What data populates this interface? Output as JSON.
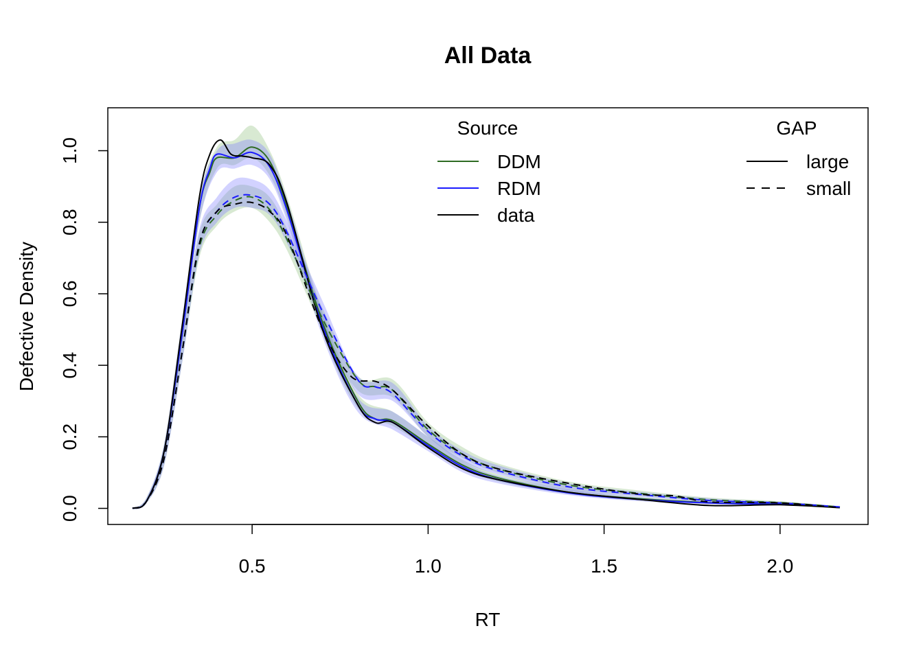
{
  "chart_data": {
    "type": "line",
    "title": "All Data",
    "xlabel": "RT",
    "ylabel": "Defective Density",
    "xlim": [
      0.09,
      2.25
    ],
    "ylim": [
      -0.045,
      1.12
    ],
    "xticks": [
      0.5,
      1.0,
      1.5,
      2.0
    ],
    "xtick_labels": [
      "0.5",
      "1.0",
      "1.5",
      "2.0"
    ],
    "yticks": [
      0.0,
      0.2,
      0.4,
      0.6,
      0.8,
      1.0
    ],
    "ytick_labels": [
      "0.0",
      "0.2",
      "0.4",
      "0.6",
      "0.8",
      "1.0"
    ],
    "grid": false,
    "legends": [
      {
        "title": "Source",
        "placement": "top-center",
        "entries": [
          {
            "label": "DDM",
            "color": "#2e6b22",
            "dash": "solid"
          },
          {
            "label": "RDM",
            "color": "#1a1aff",
            "dash": "solid"
          },
          {
            "label": "data",
            "color": "#000000",
            "dash": "solid"
          }
        ]
      },
      {
        "title": "GAP",
        "placement": "top-right",
        "entries": [
          {
            "label": "large",
            "color": "#000000",
            "dash": "solid"
          },
          {
            "label": "small",
            "color": "#000000",
            "dash": "dashed"
          }
        ]
      }
    ],
    "bands": [
      {
        "name": "DDM large",
        "color": "#8fbf7f",
        "opacity": 0.35,
        "x": [
          0.16,
          0.2,
          0.25,
          0.3,
          0.35,
          0.4,
          0.45,
          0.5,
          0.55,
          0.6,
          0.7,
          0.8,
          0.9,
          1.0,
          1.1,
          1.2,
          1.4,
          1.6,
          1.8,
          2.0,
          2.17
        ],
        "lower": [
          0.0,
          0.02,
          0.14,
          0.45,
          0.8,
          0.95,
          0.96,
          0.98,
          0.93,
          0.81,
          0.49,
          0.28,
          0.23,
          0.17,
          0.11,
          0.075,
          0.04,
          0.022,
          0.013,
          0.01,
          0.002
        ],
        "upper": [
          0.0,
          0.03,
          0.18,
          0.52,
          0.87,
          1.01,
          1.03,
          1.07,
          1.0,
          0.87,
          0.55,
          0.32,
          0.27,
          0.2,
          0.135,
          0.095,
          0.055,
          0.032,
          0.02,
          0.015,
          0.005
        ]
      },
      {
        "name": "RDM large",
        "color": "#7f7fff",
        "opacity": 0.35,
        "x": [
          0.16,
          0.2,
          0.25,
          0.3,
          0.35,
          0.4,
          0.45,
          0.5,
          0.55,
          0.6,
          0.7,
          0.8,
          0.9,
          1.0,
          1.1,
          1.2,
          1.4,
          1.6,
          1.8,
          2.0,
          2.17
        ],
        "lower": [
          0.0,
          0.02,
          0.14,
          0.45,
          0.8,
          0.94,
          0.95,
          0.96,
          0.92,
          0.8,
          0.48,
          0.27,
          0.22,
          0.16,
          0.1,
          0.07,
          0.037,
          0.02,
          0.012,
          0.009,
          0.002
        ],
        "upper": [
          0.0,
          0.03,
          0.18,
          0.52,
          0.87,
          1.0,
          1.02,
          1.03,
          0.99,
          0.86,
          0.54,
          0.31,
          0.27,
          0.2,
          0.13,
          0.09,
          0.052,
          0.03,
          0.019,
          0.014,
          0.005
        ]
      },
      {
        "name": "DDM small",
        "color": "#8fbf7f",
        "opacity": 0.35,
        "x": [
          0.16,
          0.2,
          0.25,
          0.3,
          0.35,
          0.4,
          0.45,
          0.5,
          0.55,
          0.6,
          0.7,
          0.8,
          0.9,
          1.0,
          1.1,
          1.2,
          1.4,
          1.6,
          1.8,
          2.0,
          2.17
        ],
        "lower": [
          0.0,
          0.015,
          0.12,
          0.4,
          0.7,
          0.79,
          0.83,
          0.84,
          0.8,
          0.72,
          0.5,
          0.33,
          0.31,
          0.2,
          0.14,
          0.1,
          0.055,
          0.035,
          0.02,
          0.012,
          0.002
        ],
        "upper": [
          0.0,
          0.025,
          0.16,
          0.47,
          0.77,
          0.85,
          0.9,
          0.9,
          0.87,
          0.78,
          0.56,
          0.37,
          0.36,
          0.24,
          0.17,
          0.125,
          0.075,
          0.05,
          0.03,
          0.02,
          0.006
        ]
      },
      {
        "name": "RDM small",
        "color": "#7f7fff",
        "opacity": 0.35,
        "x": [
          0.16,
          0.2,
          0.25,
          0.3,
          0.35,
          0.4,
          0.45,
          0.5,
          0.55,
          0.6,
          0.7,
          0.8,
          0.9,
          1.0,
          1.1,
          1.2,
          1.4,
          1.6,
          1.8,
          2.0,
          2.17
        ],
        "lower": [
          0.0,
          0.015,
          0.12,
          0.4,
          0.71,
          0.8,
          0.84,
          0.84,
          0.82,
          0.74,
          0.52,
          0.32,
          0.3,
          0.2,
          0.13,
          0.095,
          0.05,
          0.032,
          0.018,
          0.012,
          0.002
        ],
        "upper": [
          0.0,
          0.025,
          0.16,
          0.47,
          0.78,
          0.87,
          0.92,
          0.92,
          0.89,
          0.8,
          0.58,
          0.37,
          0.35,
          0.23,
          0.16,
          0.12,
          0.07,
          0.046,
          0.028,
          0.018,
          0.006
        ]
      }
    ],
    "series": [
      {
        "name": "DDM large",
        "color": "#2e6b22",
        "dash": "solid",
        "x": [
          0.16,
          0.2,
          0.25,
          0.3,
          0.35,
          0.38,
          0.4,
          0.45,
          0.5,
          0.55,
          0.6,
          0.7,
          0.8,
          0.85,
          0.9,
          1.0,
          1.1,
          1.2,
          1.4,
          1.6,
          1.8,
          2.0,
          2.17
        ],
        "y": [
          0.0,
          0.02,
          0.16,
          0.48,
          0.84,
          0.94,
          0.98,
          0.98,
          1.01,
          0.97,
          0.84,
          0.52,
          0.3,
          0.25,
          0.245,
          0.18,
          0.12,
          0.085,
          0.045,
          0.027,
          0.016,
          0.012,
          0.003
        ]
      },
      {
        "name": "RDM large",
        "color": "#1a1aff",
        "dash": "solid",
        "x": [
          0.16,
          0.2,
          0.25,
          0.3,
          0.35,
          0.38,
          0.4,
          0.45,
          0.5,
          0.55,
          0.6,
          0.7,
          0.8,
          0.85,
          0.9,
          1.0,
          1.1,
          1.2,
          1.4,
          1.6,
          1.8,
          2.0,
          2.17
        ],
        "y": [
          0.0,
          0.02,
          0.16,
          0.48,
          0.84,
          0.95,
          0.99,
          0.98,
          0.995,
          0.955,
          0.83,
          0.51,
          0.29,
          0.25,
          0.24,
          0.175,
          0.115,
          0.08,
          0.043,
          0.025,
          0.015,
          0.011,
          0.003
        ]
      },
      {
        "name": "data large",
        "color": "#000000",
        "dash": "solid",
        "x": [
          0.16,
          0.2,
          0.25,
          0.3,
          0.35,
          0.38,
          0.41,
          0.44,
          0.47,
          0.5,
          0.55,
          0.6,
          0.7,
          0.8,
          0.85,
          0.9,
          1.0,
          1.1,
          1.2,
          1.4,
          1.6,
          1.8,
          2.0,
          2.17
        ],
        "y": [
          0.0,
          0.02,
          0.16,
          0.5,
          0.87,
          0.99,
          1.03,
          0.99,
          0.985,
          0.98,
          0.96,
          0.85,
          0.5,
          0.29,
          0.24,
          0.24,
          0.17,
          0.11,
          0.08,
          0.045,
          0.025,
          0.008,
          0.01,
          0.002
        ]
      },
      {
        "name": "DDM small",
        "color": "#2e6b22",
        "dash": "dashed",
        "x": [
          0.16,
          0.2,
          0.25,
          0.3,
          0.35,
          0.4,
          0.45,
          0.5,
          0.55,
          0.6,
          0.7,
          0.8,
          0.85,
          0.9,
          1.0,
          1.1,
          1.2,
          1.4,
          1.6,
          1.8,
          2.0,
          2.17
        ],
        "y": [
          0.0,
          0.02,
          0.14,
          0.43,
          0.73,
          0.82,
          0.86,
          0.87,
          0.835,
          0.75,
          0.53,
          0.36,
          0.34,
          0.33,
          0.22,
          0.15,
          0.11,
          0.065,
          0.042,
          0.024,
          0.016,
          0.004
        ]
      },
      {
        "name": "RDM small",
        "color": "#1a1aff",
        "dash": "dashed",
        "x": [
          0.16,
          0.2,
          0.25,
          0.3,
          0.35,
          0.4,
          0.45,
          0.5,
          0.55,
          0.6,
          0.7,
          0.8,
          0.85,
          0.9,
          1.0,
          1.1,
          1.2,
          1.4,
          1.6,
          1.8,
          2.0,
          2.17
        ],
        "y": [
          0.0,
          0.02,
          0.14,
          0.43,
          0.74,
          0.83,
          0.87,
          0.875,
          0.85,
          0.77,
          0.55,
          0.36,
          0.34,
          0.32,
          0.215,
          0.145,
          0.105,
          0.06,
          0.039,
          0.022,
          0.015,
          0.004
        ]
      },
      {
        "name": "data small",
        "color": "#000000",
        "dash": "dashed",
        "x": [
          0.16,
          0.2,
          0.25,
          0.3,
          0.35,
          0.4,
          0.45,
          0.5,
          0.55,
          0.6,
          0.7,
          0.78,
          0.85,
          0.9,
          1.0,
          1.1,
          1.2,
          1.4,
          1.6,
          1.7,
          1.8,
          2.0,
          2.17
        ],
        "y": [
          0.0,
          0.02,
          0.14,
          0.43,
          0.74,
          0.83,
          0.85,
          0.855,
          0.83,
          0.76,
          0.5,
          0.37,
          0.355,
          0.33,
          0.23,
          0.15,
          0.11,
          0.07,
          0.04,
          0.035,
          0.018,
          0.015,
          0.002
        ]
      }
    ]
  }
}
